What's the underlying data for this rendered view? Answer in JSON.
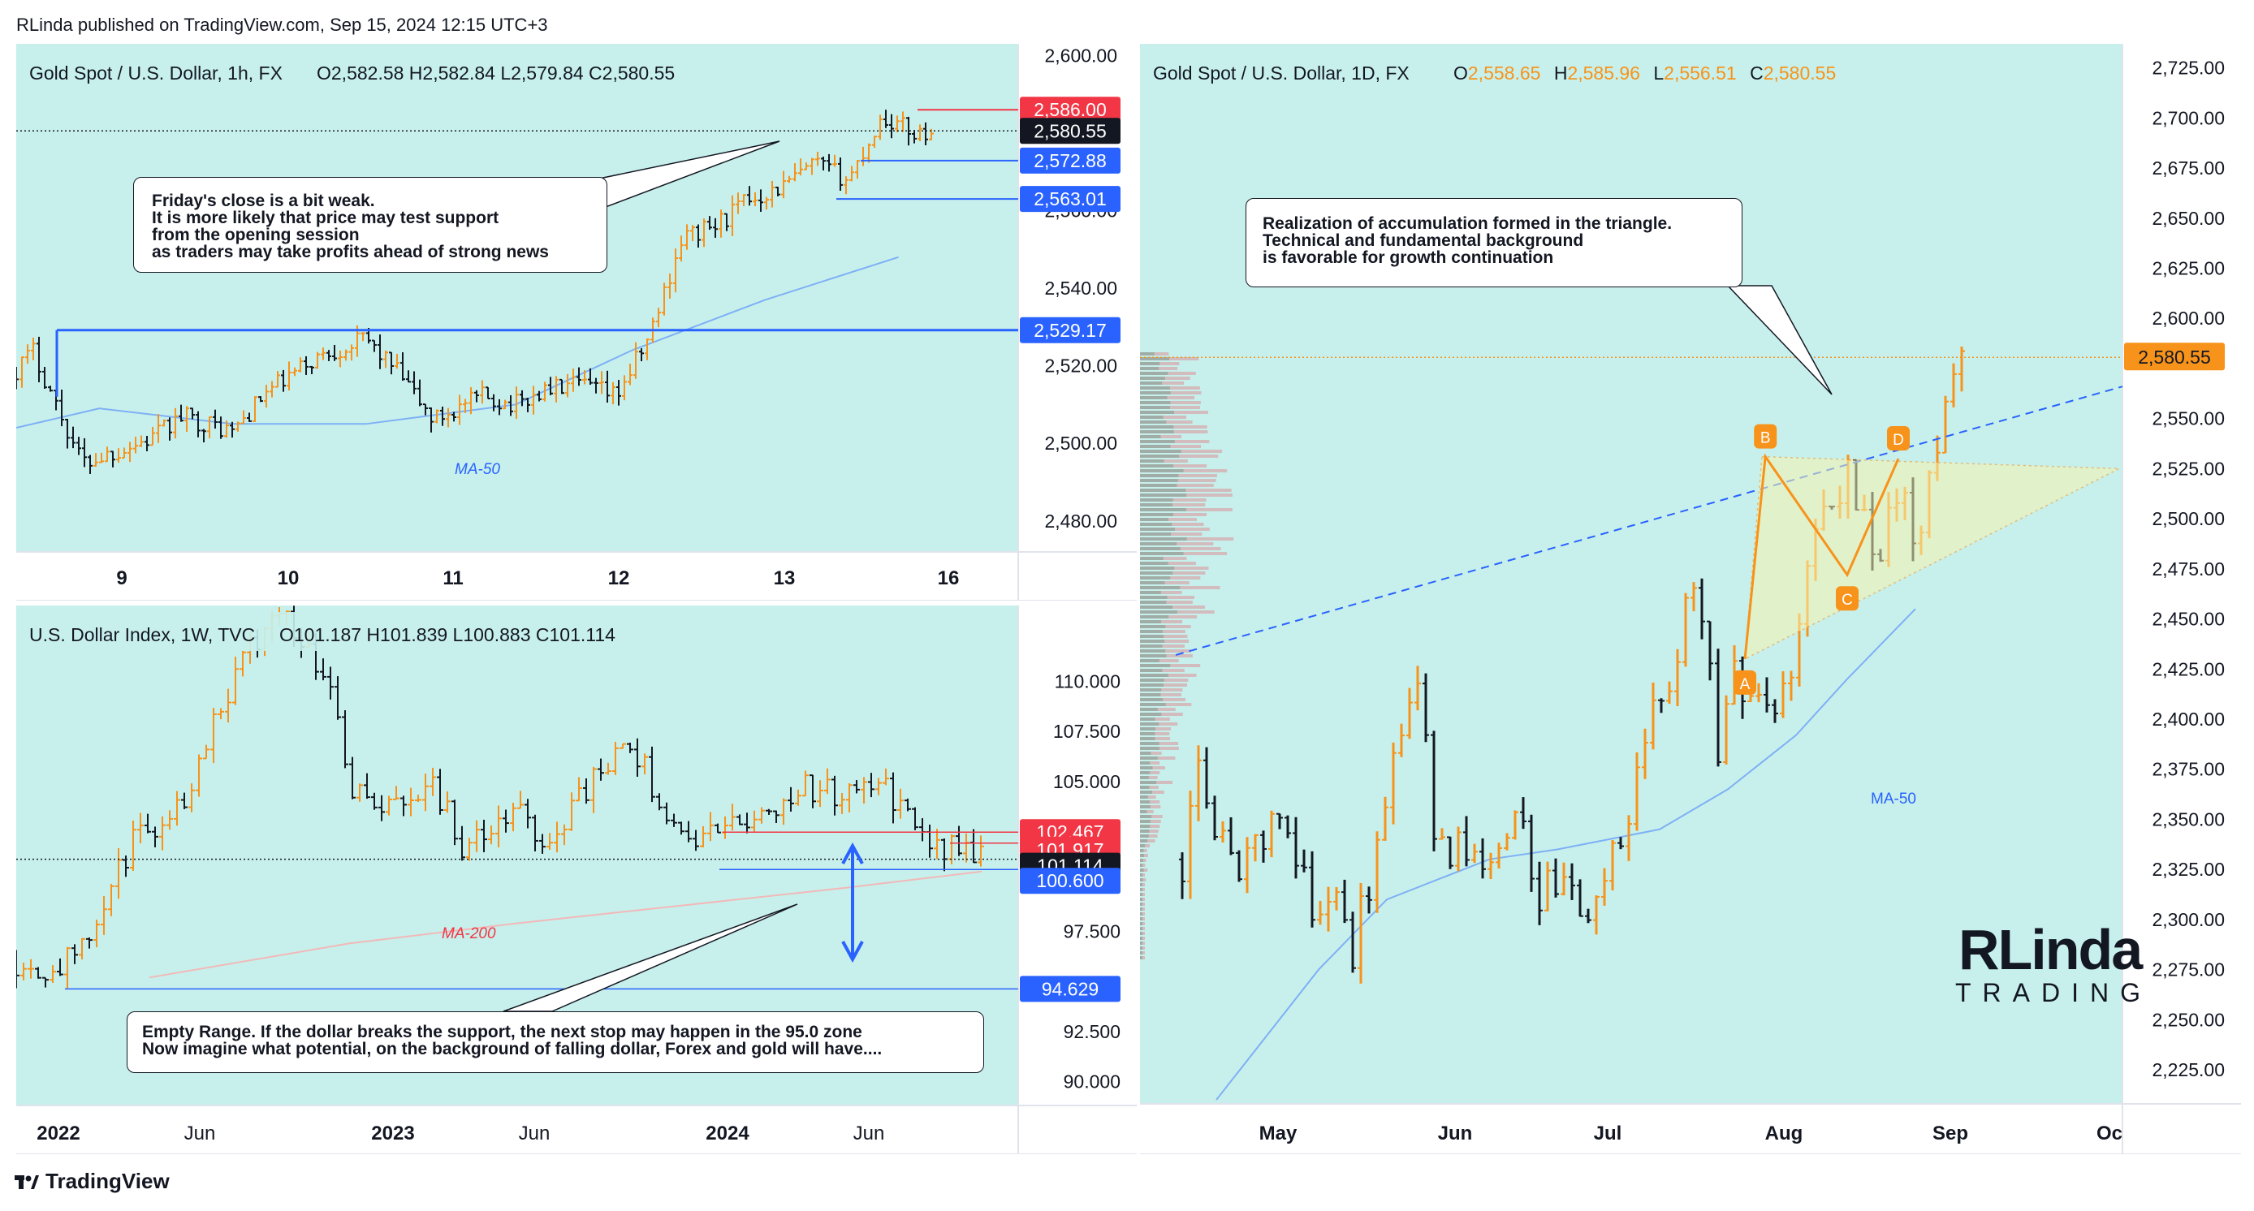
{
  "header": {
    "published": "RLinda published on TradingView.com, Sep 15, 2024 12:15 UTC+3"
  },
  "footer": {
    "brand": "TradingView"
  },
  "colors": {
    "panel_bg": "#c7f0ec",
    "up": "#f7931a",
    "down": "#131722",
    "ma": "#7eb0f5",
    "support": "#2962ff",
    "resistance": "#f23645"
  },
  "watermark": {
    "line1": "RLinda",
    "line2": "TRADING"
  },
  "gold_1h": {
    "title": "Gold Spot / U.S. Dollar, 1h, FX",
    "ohlc": "O2,582.58   H2,582.84   L2,579.84   C2,580.55",
    "ma_label": "MA-50",
    "callout": "Friday's close is a bit weak.\nIt is more likely that price may test support\nfrom the opening session\nas traders may take profits ahead of strong news",
    "price_tags": [
      {
        "text": "2,586.00",
        "color": "#f23645"
      },
      {
        "text": "2,580.55",
        "color": "#131722"
      },
      {
        "text": "2,572.88",
        "color": "#2962ff"
      },
      {
        "text": "2,563.01",
        "color": "#2962ff"
      },
      {
        "text": "2,529.17",
        "color": "#2962ff"
      }
    ]
  },
  "dxy_1w": {
    "title": "U.S. Dollar Index, 1W, TVC",
    "ohlc": "O101.187   H101.839   L100.883   C101.114",
    "ma_label": "MA-200",
    "callout": "Empty Range. If the dollar breaks the support, the next stop may happen in the 95.0 zone\nNow imagine what potential, on the background of falling dollar, Forex and gold will have....",
    "price_tags": [
      {
        "text": "102.467",
        "color": "#f23645"
      },
      {
        "text": "101.917",
        "color": "#f23645"
      },
      {
        "text": "101.114",
        "color": "#131722"
      },
      {
        "text": "100.600",
        "color": "#2962ff"
      },
      {
        "text": "94.629",
        "color": "#2962ff"
      }
    ]
  },
  "gold_1d": {
    "title": "Gold Spot / U.S. Dollar, 1D, FX",
    "ohlc": {
      "o_label": "O",
      "o": "2,558.65",
      "h_label": "H",
      "h": "2,585.96",
      "l_label": "L",
      "l": "2,556.51",
      "c_label": "C",
      "c": "2,580.55"
    },
    "ma_label": "MA-50",
    "callout": "Realization of accumulation formed in the triangle.\nTechnical and fundamental background\nis favorable for growth continuation",
    "price_tag": {
      "text": "2,580.55",
      "color": "#f7931a"
    },
    "pattern_labels": [
      "A",
      "B",
      "C",
      "D"
    ]
  },
  "chart_data": [
    {
      "type": "candlestick",
      "title": "Gold Spot / U.S. Dollar, 1h, FX",
      "x_ticks": [
        "9",
        "10",
        "11",
        "12",
        "13",
        "16"
      ],
      "y_ticks": [
        2480,
        2500,
        2520,
        2540,
        2560,
        2580,
        2600
      ],
      "y_tick_labels": [
        "2,480.00",
        "2,500.00",
        "2,520.00",
        "2,540.00",
        "2,560.00",
        "2,580.00",
        "2,600.00"
      ],
      "ylim": [
        2472,
        2603
      ],
      "levels": [
        2586.0,
        2580.55,
        2572.88,
        2563.01,
        2529.17
      ],
      "ma": {
        "name": "MA-50",
        "x": [
          0,
          0.5,
          1.3,
          2.1,
          3.0,
          3.7,
          4.5,
          5.3
        ],
        "y": [
          2504,
          2509,
          2505,
          2505,
          2510,
          2524,
          2537,
          2548
        ]
      },
      "anchors": {
        "x": [
          0,
          0.1,
          0.3,
          0.4,
          0.8,
          1.0,
          1.3,
          1.5,
          1.8,
          2.1,
          2.3,
          2.5,
          2.8,
          3.0,
          3.2,
          3.4,
          3.6,
          3.8,
          4.0,
          4.2,
          4.4,
          4.6,
          4.8,
          5.0,
          5.2,
          5.4,
          5.5
        ],
        "y": [
          2519,
          2524,
          2504,
          2495,
          2501,
          2507,
          2503,
          2513,
          2522,
          2527,
          2518,
          2506,
          2512,
          2510,
          2514,
          2515,
          2512,
          2527,
          2553,
          2556,
          2563,
          2566,
          2572,
          2568,
          2584,
          2580,
          2580.55
        ]
      }
    },
    {
      "type": "candlestick",
      "title": "U.S. Dollar Index, 1W, TVC",
      "x_ticks": [
        "2022",
        "Jun",
        "2023",
        "Jun",
        "2024",
        "Jun"
      ],
      "y_ticks": [
        90.0,
        92.5,
        95.0,
        97.5,
        100.0,
        102.5,
        105.0,
        107.5,
        110.0
      ],
      "y_tick_labels": [
        "90.000",
        "92.500",
        "",
        "97.500",
        "",
        "",
        "105.000",
        "107.500",
        "110.000"
      ],
      "ylim": [
        88.8,
        113.8
      ],
      "levels": [
        102.467,
        101.917,
        101.114,
        100.6,
        94.629
      ],
      "ma": {
        "name": "MA-200",
        "x": [
          0.4,
          1.0,
          1.5,
          2.0,
          2.5,
          2.9
        ],
        "y": [
          95.2,
          96.9,
          97.9,
          98.8,
          99.7,
          100.5
        ]
      },
      "anchors": {
        "x": [
          0,
          0.1,
          0.2,
          0.35,
          0.5,
          0.6,
          0.75,
          0.8,
          0.95,
          1.0,
          1.1,
          1.25,
          1.35,
          1.5,
          1.6,
          1.7,
          1.8,
          1.85,
          2.0,
          2.1,
          2.25,
          2.35,
          2.5,
          2.55,
          2.65,
          2.75,
          2.85,
          2.9
        ],
        "y": [
          96.0,
          95.6,
          96.5,
          102.0,
          104.0,
          108.5,
          113.0,
          113.5,
          110.0,
          105.0,
          103.5,
          105.0,
          101.5,
          103.5,
          101.8,
          104.5,
          106.0,
          106.8,
          102.0,
          102.5,
          103.5,
          104.8,
          104.2,
          105.3,
          104.0,
          101.5,
          101.7,
          101.114
        ]
      }
    },
    {
      "type": "candlestick",
      "title": "Gold Spot / U.S. Dollar, 1D, FX",
      "x_ticks": [
        "May",
        "Jun",
        "Jul",
        "Aug",
        "Sep",
        "Oc"
      ],
      "y_ticks": [
        2225,
        2250,
        2275,
        2300,
        2325,
        2350,
        2375,
        2400,
        2425,
        2450,
        2475,
        2500,
        2525,
        2550,
        2575,
        2600,
        2625,
        2650,
        2675,
        2700,
        2725
      ],
      "y_tick_labels": [
        "2,225.00",
        "2,250.00",
        "2,275.00",
        "2,300.00",
        "2,325.00",
        "2,350.00",
        "2,375.00",
        "2,400.00",
        "2,425.00",
        "2,450.00",
        "2,475.00",
        "2,500.00",
        "2,525.00",
        "2,550.00",
        "",
        "2,600.00",
        "2,625.00",
        "2,650.00",
        "2,675.00",
        "2,700.00",
        "2,725.00"
      ],
      "ylim": [
        2208,
        2737
      ],
      "last_price": 2580.55,
      "ma": {
        "name": "MA-50",
        "x": [
          0.2,
          0.8,
          1.2,
          1.8,
          2.2,
          2.8,
          3.2,
          3.6,
          3.9,
          4.3
        ],
        "y": [
          2210,
          2275,
          2310,
          2330,
          2335,
          2345,
          2365,
          2392,
          2420,
          2455
        ]
      },
      "anchors": {
        "x": [
          0,
          0.1,
          0.3,
          0.55,
          0.8,
          0.95,
          1.0,
          1.1,
          1.25,
          1.4,
          1.5,
          1.6,
          1.75,
          1.9,
          2.0,
          2.1,
          2.25,
          2.35,
          2.5,
          2.6,
          2.7,
          2.85,
          3.0,
          3.05,
          3.15,
          3.25,
          3.35,
          3.5,
          3.65,
          3.75,
          3.9,
          4.1,
          4.2,
          4.3,
          4.4,
          4.5,
          4.55
        ],
        "y": [
          2330,
          2372,
          2325,
          2345,
          2300,
          2310,
          2285,
          2322,
          2395,
          2415,
          2330,
          2340,
          2320,
          2335,
          2350,
          2310,
          2330,
          2305,
          2330,
          2325,
          2390,
          2415,
          2470,
          2445,
          2385,
          2425,
          2405,
          2395,
          2470,
          2510,
          2520,
          2480,
          2515,
          2495,
          2520,
          2560,
          2580.55
        ]
      },
      "pattern": {
        "A": [
          2430,
          "Aug"
        ],
        "B": [
          2530,
          "Aug"
        ],
        "C": [
          2472,
          "Sep"
        ],
        "D": [
          2530,
          "Sep"
        ]
      },
      "trendline": {
        "from": 2432,
        "to": 2566
      }
    }
  ]
}
